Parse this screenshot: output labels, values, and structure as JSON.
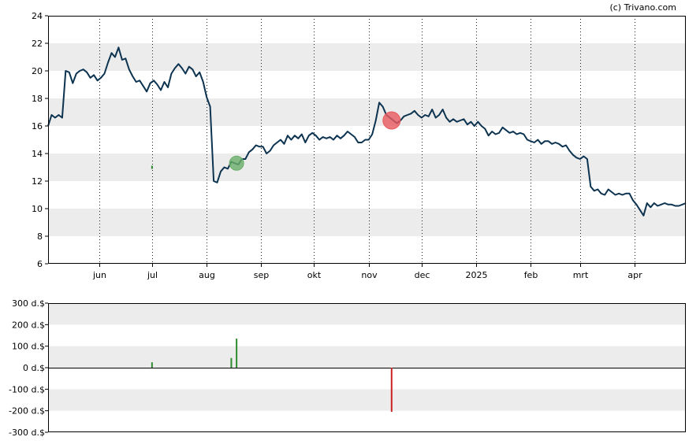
{
  "watermark": "(c) Trivano.com",
  "chart_data": [
    {
      "type": "line",
      "title": "",
      "x_tick_labels": [
        "jun",
        "jul",
        "aug",
        "sep",
        "okt",
        "nov",
        "dec",
        "2025",
        "feb",
        "mrt",
        "apr"
      ],
      "x_tick_dates": [
        "2024-06-01",
        "2024-07-01",
        "2024-08-01",
        "2024-09-01",
        "2024-10-01",
        "2024-11-01",
        "2024-12-01",
        "2025-01-01",
        "2025-02-01",
        "2025-03-01",
        "2025-04-01"
      ],
      "y_ticks": [
        6,
        8,
        10,
        12,
        14,
        16,
        18,
        20,
        22,
        24
      ],
      "ylim": [
        6,
        24
      ],
      "xlim": [
        "2024-05-03",
        "2025-04-30"
      ],
      "grid": "horizontal bands + vertical dotted month lines",
      "series": [
        {
          "name": "",
          "color": "#0c3350",
          "points": [
            [
              "2024-05-03",
              16.0
            ],
            [
              "2024-05-05",
              16.8
            ],
            [
              "2024-05-07",
              16.6
            ],
            [
              "2024-05-09",
              16.8
            ],
            [
              "2024-05-11",
              16.6
            ],
            [
              "2024-05-13",
              20.0
            ],
            [
              "2024-05-15",
              19.9
            ],
            [
              "2024-05-17",
              19.1
            ],
            [
              "2024-05-19",
              19.8
            ],
            [
              "2024-05-21",
              20.0
            ],
            [
              "2024-05-23",
              20.1
            ],
            [
              "2024-05-25",
              19.9
            ],
            [
              "2024-05-27",
              19.5
            ],
            [
              "2024-05-29",
              19.7
            ],
            [
              "2024-05-31",
              19.3
            ],
            [
              "2024-06-02",
              19.5
            ],
            [
              "2024-06-04",
              19.8
            ],
            [
              "2024-06-06",
              20.6
            ],
            [
              "2024-06-08",
              21.3
            ],
            [
              "2024-06-10",
              21.0
            ],
            [
              "2024-06-12",
              21.7
            ],
            [
              "2024-06-14",
              20.8
            ],
            [
              "2024-06-16",
              20.9
            ],
            [
              "2024-06-18",
              20.1
            ],
            [
              "2024-06-20",
              19.6
            ],
            [
              "2024-06-22",
              19.2
            ],
            [
              "2024-06-24",
              19.3
            ],
            [
              "2024-06-26",
              18.9
            ],
            [
              "2024-06-28",
              18.5
            ],
            [
              "2024-06-30",
              19.1
            ],
            [
              "2024-07-02",
              19.3
            ],
            [
              "2024-07-04",
              19.0
            ],
            [
              "2024-07-06",
              18.6
            ],
            [
              "2024-07-08",
              19.2
            ],
            [
              "2024-07-10",
              18.8
            ],
            [
              "2024-07-12",
              19.8
            ],
            [
              "2024-07-14",
              20.2
            ],
            [
              "2024-07-16",
              20.5
            ],
            [
              "2024-07-18",
              20.2
            ],
            [
              "2024-07-20",
              19.8
            ],
            [
              "2024-07-22",
              20.3
            ],
            [
              "2024-07-24",
              20.1
            ],
            [
              "2024-07-26",
              19.6
            ],
            [
              "2024-07-28",
              19.9
            ],
            [
              "2024-07-30",
              19.2
            ],
            [
              "2024-08-01",
              18.1
            ],
            [
              "2024-08-03",
              17.4
            ],
            [
              "2024-08-05",
              12.0
            ],
            [
              "2024-08-07",
              11.9
            ],
            [
              "2024-08-09",
              12.7
            ],
            [
              "2024-08-11",
              13.0
            ],
            [
              "2024-08-13",
              12.9
            ],
            [
              "2024-08-15",
              13.4
            ],
            [
              "2024-08-17",
              13.3
            ],
            [
              "2024-08-19",
              13.2
            ],
            [
              "2024-08-21",
              13.6
            ],
            [
              "2024-08-23",
              13.6
            ],
            [
              "2024-08-25",
              14.1
            ],
            [
              "2024-08-27",
              14.3
            ],
            [
              "2024-08-29",
              14.6
            ],
            [
              "2024-08-31",
              14.5
            ],
            [
              "2024-09-02",
              14.5
            ],
            [
              "2024-09-04",
              14.0
            ],
            [
              "2024-09-06",
              14.2
            ],
            [
              "2024-09-08",
              14.6
            ],
            [
              "2024-09-10",
              14.8
            ],
            [
              "2024-09-12",
              15.0
            ],
            [
              "2024-09-14",
              14.7
            ],
            [
              "2024-09-16",
              15.3
            ],
            [
              "2024-09-18",
              15.0
            ],
            [
              "2024-09-20",
              15.3
            ],
            [
              "2024-09-22",
              15.1
            ],
            [
              "2024-09-24",
              15.4
            ],
            [
              "2024-09-26",
              14.8
            ],
            [
              "2024-09-28",
              15.3
            ],
            [
              "2024-09-30",
              15.5
            ],
            [
              "2024-10-02",
              15.3
            ],
            [
              "2024-10-04",
              15.0
            ],
            [
              "2024-10-06",
              15.2
            ],
            [
              "2024-10-08",
              15.1
            ],
            [
              "2024-10-10",
              15.2
            ],
            [
              "2024-10-12",
              15.0
            ],
            [
              "2024-10-14",
              15.3
            ],
            [
              "2024-10-16",
              15.1
            ],
            [
              "2024-10-18",
              15.3
            ],
            [
              "2024-10-20",
              15.6
            ],
            [
              "2024-10-22",
              15.4
            ],
            [
              "2024-10-24",
              15.2
            ],
            [
              "2024-10-26",
              14.8
            ],
            [
              "2024-10-28",
              14.8
            ],
            [
              "2024-10-30",
              15.0
            ],
            [
              "2024-11-01",
              15.0
            ],
            [
              "2024-11-03",
              15.4
            ],
            [
              "2024-11-05",
              16.4
            ],
            [
              "2024-11-07",
              17.7
            ],
            [
              "2024-11-09",
              17.4
            ],
            [
              "2024-11-11",
              16.8
            ],
            [
              "2024-11-13",
              16.6
            ],
            [
              "2024-11-15",
              16.4
            ],
            [
              "2024-11-17",
              16.2
            ],
            [
              "2024-11-19",
              16.4
            ],
            [
              "2024-11-21",
              16.7
            ],
            [
              "2024-11-23",
              16.8
            ],
            [
              "2024-11-25",
              16.9
            ],
            [
              "2024-11-27",
              17.1
            ],
            [
              "2024-11-29",
              16.8
            ],
            [
              "2024-12-01",
              16.6
            ],
            [
              "2024-12-03",
              16.8
            ],
            [
              "2024-12-05",
              16.7
            ],
            [
              "2024-12-07",
              17.2
            ],
            [
              "2024-12-09",
              16.6
            ],
            [
              "2024-12-11",
              16.8
            ],
            [
              "2024-12-13",
              17.2
            ],
            [
              "2024-12-15",
              16.6
            ],
            [
              "2024-12-17",
              16.3
            ],
            [
              "2024-12-19",
              16.5
            ],
            [
              "2024-12-21",
              16.3
            ],
            [
              "2024-12-23",
              16.4
            ],
            [
              "2024-12-25",
              16.5
            ],
            [
              "2024-12-27",
              16.1
            ],
            [
              "2024-12-29",
              16.3
            ],
            [
              "2024-12-31",
              16.0
            ],
            [
              "2025-01-02",
              16.3
            ],
            [
              "2025-01-04",
              16.0
            ],
            [
              "2025-01-06",
              15.8
            ],
            [
              "2025-01-08",
              15.3
            ],
            [
              "2025-01-10",
              15.6
            ],
            [
              "2025-01-12",
              15.4
            ],
            [
              "2025-01-14",
              15.5
            ],
            [
              "2025-01-16",
              15.9
            ],
            [
              "2025-01-18",
              15.7
            ],
            [
              "2025-01-20",
              15.5
            ],
            [
              "2025-01-22",
              15.6
            ],
            [
              "2025-01-24",
              15.4
            ],
            [
              "2025-01-26",
              15.5
            ],
            [
              "2025-01-28",
              15.4
            ],
            [
              "2025-01-30",
              15.0
            ],
            [
              "2025-02-01",
              14.9
            ],
            [
              "2025-02-03",
              14.8
            ],
            [
              "2025-02-05",
              15.0
            ],
            [
              "2025-02-07",
              14.7
            ],
            [
              "2025-02-09",
              14.9
            ],
            [
              "2025-02-11",
              14.9
            ],
            [
              "2025-02-13",
              14.7
            ],
            [
              "2025-02-15",
              14.8
            ],
            [
              "2025-02-17",
              14.7
            ],
            [
              "2025-02-19",
              14.5
            ],
            [
              "2025-02-21",
              14.6
            ],
            [
              "2025-02-23",
              14.2
            ],
            [
              "2025-02-25",
              13.9
            ],
            [
              "2025-02-27",
              13.7
            ],
            [
              "2025-03-01",
              13.6
            ],
            [
              "2025-03-03",
              13.8
            ],
            [
              "2025-03-05",
              13.6
            ],
            [
              "2025-03-07",
              11.6
            ],
            [
              "2025-03-09",
              11.3
            ],
            [
              "2025-03-11",
              11.4
            ],
            [
              "2025-03-13",
              11.1
            ],
            [
              "2025-03-15",
              11.0
            ],
            [
              "2025-03-17",
              11.4
            ],
            [
              "2025-03-19",
              11.2
            ],
            [
              "2025-03-21",
              11.0
            ],
            [
              "2025-03-23",
              11.1
            ],
            [
              "2025-03-25",
              11.0
            ],
            [
              "2025-03-27",
              11.1
            ],
            [
              "2025-03-29",
              11.1
            ],
            [
              "2025-03-31",
              10.6
            ],
            [
              "2025-04-02",
              10.3
            ],
            [
              "2025-04-04",
              9.9
            ],
            [
              "2025-04-06",
              9.5
            ],
            [
              "2025-04-08",
              10.4
            ],
            [
              "2025-04-10",
              10.1
            ],
            [
              "2025-04-12",
              10.4
            ],
            [
              "2025-04-14",
              10.2
            ],
            [
              "2025-04-16",
              10.3
            ],
            [
              "2025-04-18",
              10.4
            ],
            [
              "2025-04-20",
              10.3
            ],
            [
              "2025-04-22",
              10.3
            ],
            [
              "2025-04-24",
              10.2
            ],
            [
              "2025-04-26",
              10.2
            ],
            [
              "2025-04-28",
              10.3
            ],
            [
              "2025-04-30",
              10.4
            ]
          ]
        }
      ],
      "markers": [
        {
          "date": "2024-08-18",
          "y": 13.3,
          "color": "#6aaf6a",
          "kind": "buy"
        },
        {
          "date": "2024-11-14",
          "y": 16.4,
          "color": "#e8595f",
          "kind": "sell"
        }
      ],
      "small_marks": [
        {
          "date": "2024-07-01",
          "y": 13.0,
          "color": "#2e8b2e"
        }
      ]
    },
    {
      "type": "bar",
      "title": "",
      "y_ticks": [
        -300,
        -200,
        -100,
        0,
        100,
        200,
        300
      ],
      "y_tick_labels": [
        "-300 d.$",
        "-200 d.$",
        "-100 d.$",
        "0 d.$",
        "100 d.$",
        "200 d.$",
        "300 d.$"
      ],
      "ylim": [
        -300,
        300
      ],
      "xlim": [
        "2024-05-03",
        "2025-04-30"
      ],
      "series": [
        {
          "name": "",
          "points": [
            {
              "date": "2024-07-01",
              "value": 25,
              "color": "#2e8b2e"
            },
            {
              "date": "2024-08-15",
              "value": 45,
              "color": "#2e8b2e"
            },
            {
              "date": "2024-08-18",
              "value": 135,
              "color": "#2e8b2e"
            },
            {
              "date": "2024-11-14",
              "value": -205,
              "color": "#cc2222"
            }
          ]
        }
      ]
    }
  ]
}
